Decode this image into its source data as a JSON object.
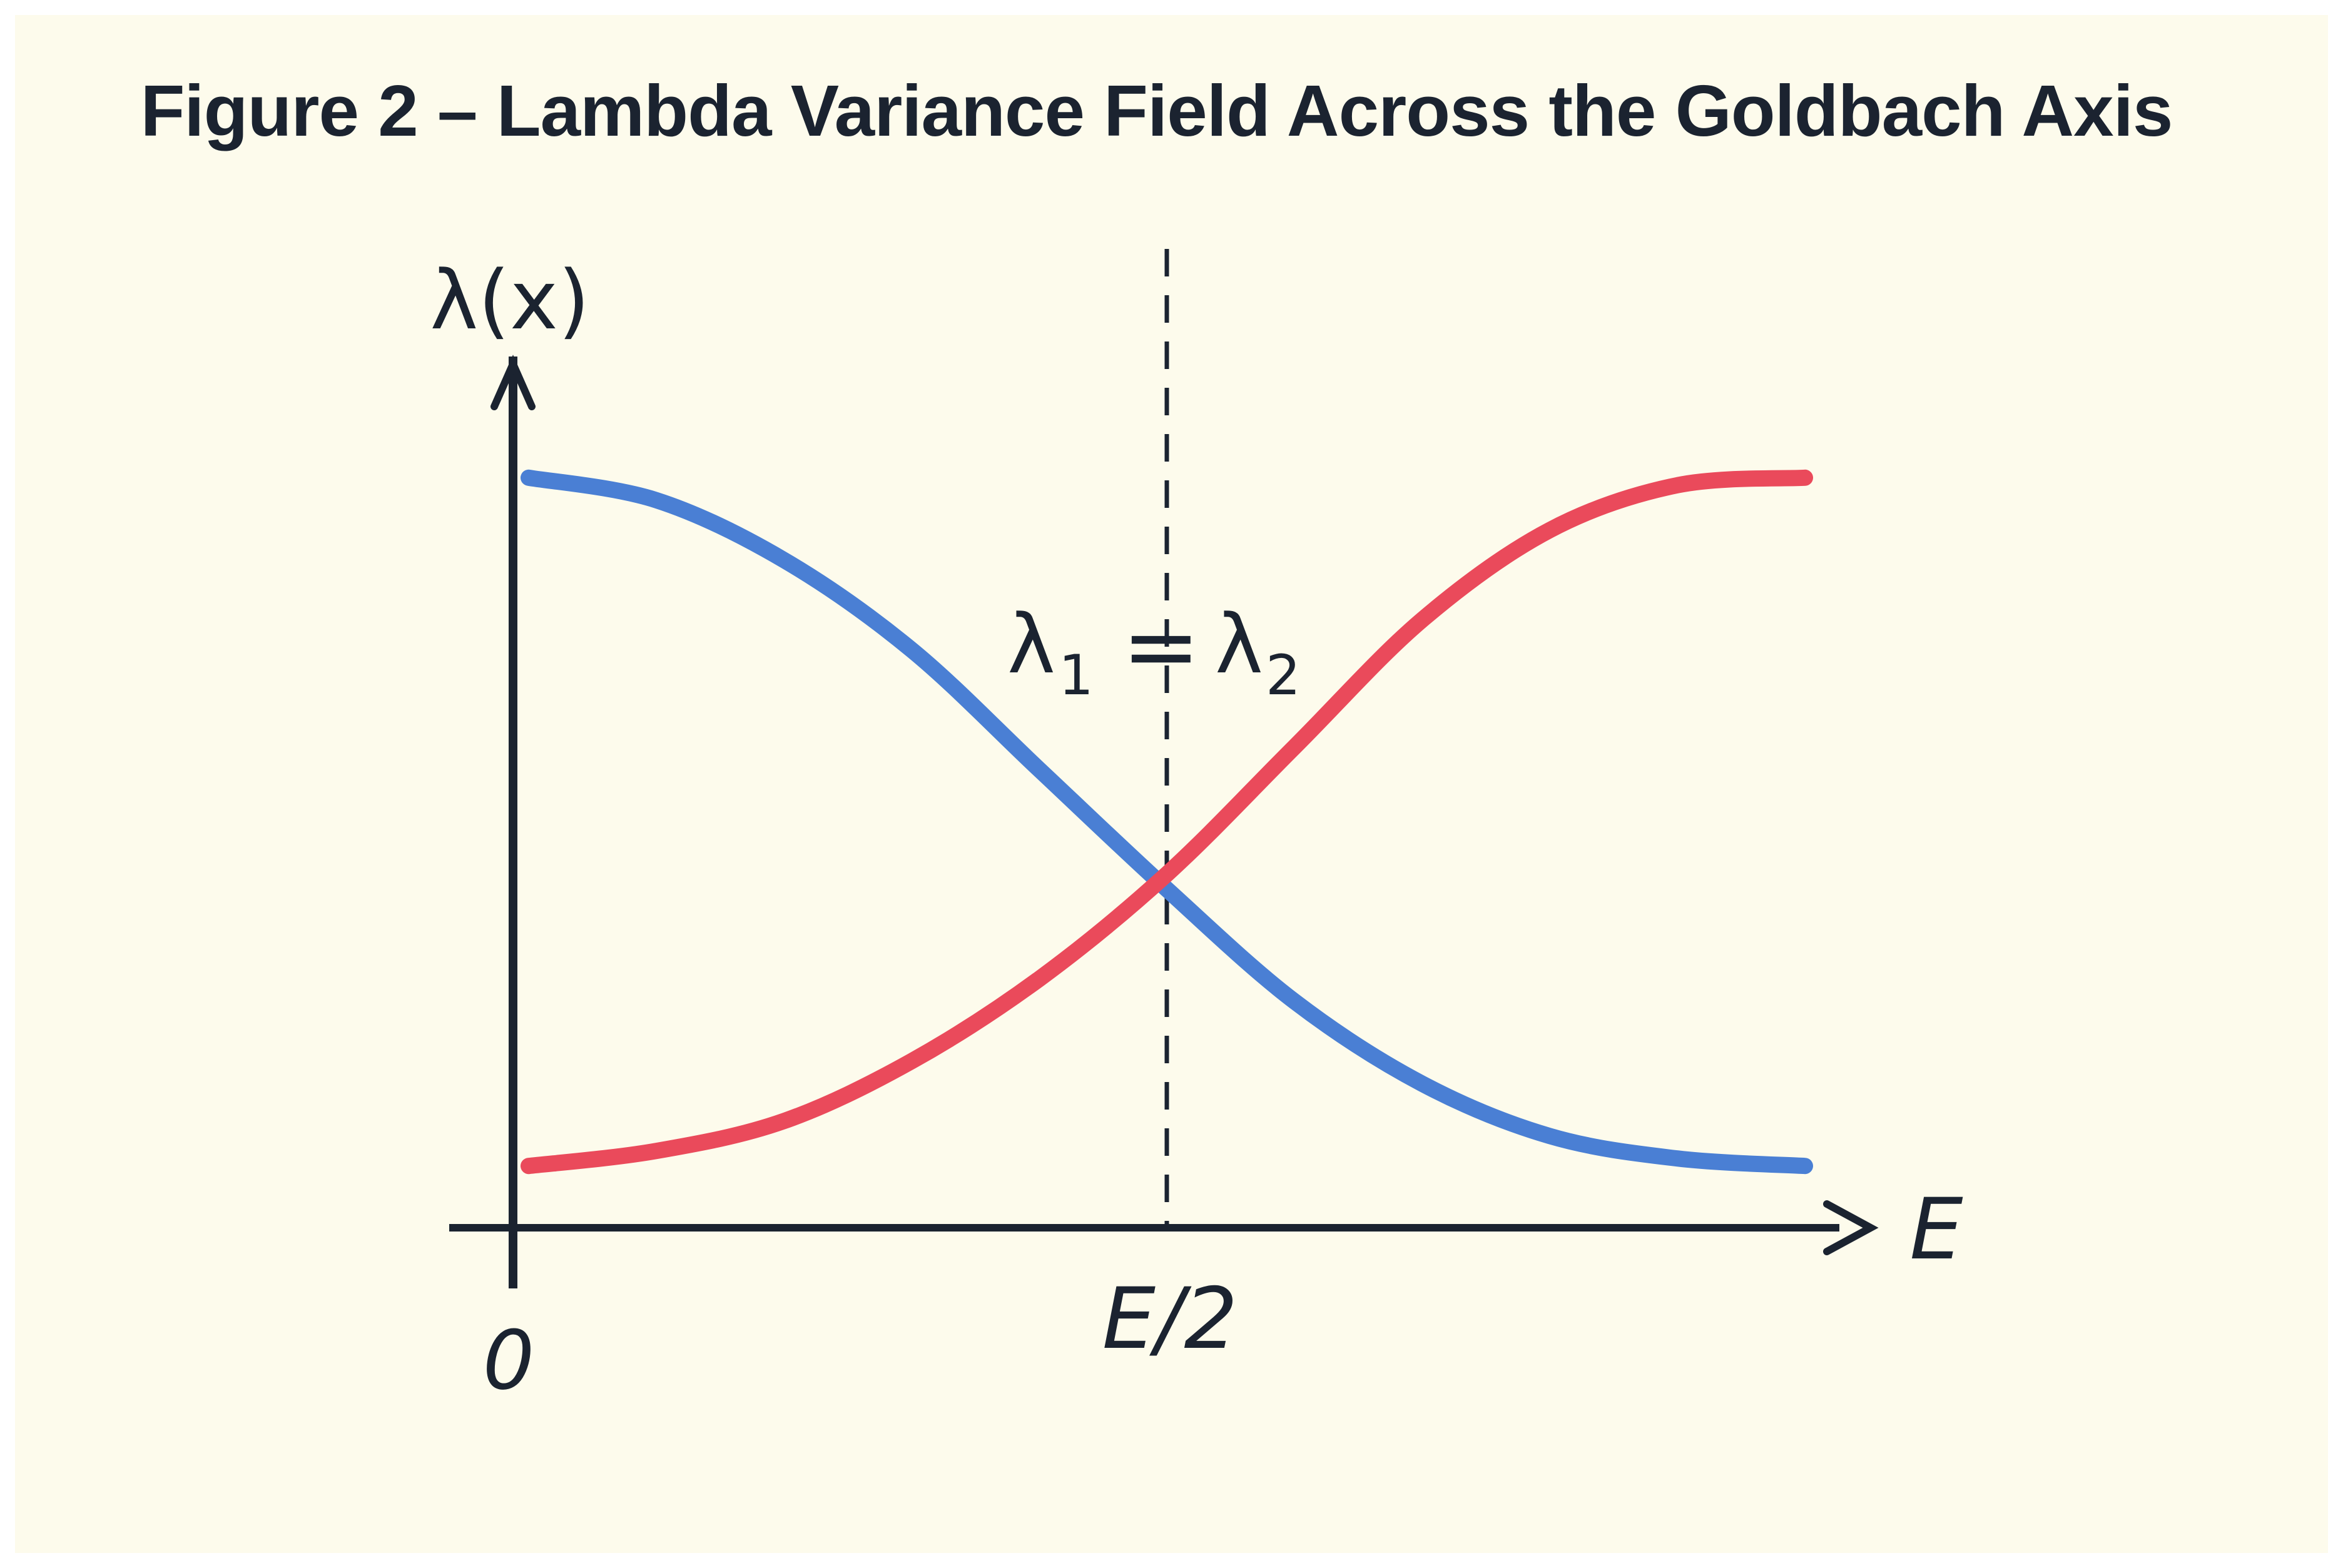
{
  "title": "Figure 2 – Lambda Variance Field Across the Goldbach Axis",
  "axes": {
    "y_label": "λ(x)",
    "x_label": "E",
    "origin_label": "0",
    "midpoint_label": "E/2"
  },
  "annotation": {
    "lambda_symbol": "λ",
    "left_sub": "1",
    "equals": "=",
    "right_sub": "2"
  },
  "colors": {
    "background": "#fdfbec",
    "axis": "#1b2330",
    "decreasing_curve": "#4a7fd4",
    "increasing_curve": "#ea4a5b"
  },
  "chart_data": {
    "type": "line",
    "title": "Figure 2 – Lambda Variance Field Across the Goldbach Axis",
    "xlabel": "E",
    "ylabel": "λ(x)",
    "x_ticks": [
      "0",
      "E/2"
    ],
    "xlim": [
      0,
      1
    ],
    "ylim": [
      0,
      1
    ],
    "grid": false,
    "crossing_x": 0.5,
    "crossing_label": "λ1 = λ2",
    "series": [
      {
        "color": "#4a7fd4",
        "x": [
          0.0,
          0.1,
          0.2,
          0.3,
          0.4,
          0.5,
          0.6,
          0.7,
          0.8,
          0.9,
          1.0
        ],
        "y": [
          0.96,
          0.93,
          0.85,
          0.73,
          0.57,
          0.41,
          0.26,
          0.15,
          0.08,
          0.05,
          0.04
        ]
      },
      {
        "color": "#ea4a5b",
        "x": [
          0.0,
          0.1,
          0.2,
          0.3,
          0.4,
          0.5,
          0.6,
          0.7,
          0.8,
          0.9,
          1.0
        ],
        "y": [
          0.04,
          0.06,
          0.1,
          0.18,
          0.29,
          0.43,
          0.6,
          0.77,
          0.89,
          0.95,
          0.96
        ]
      }
    ]
  }
}
